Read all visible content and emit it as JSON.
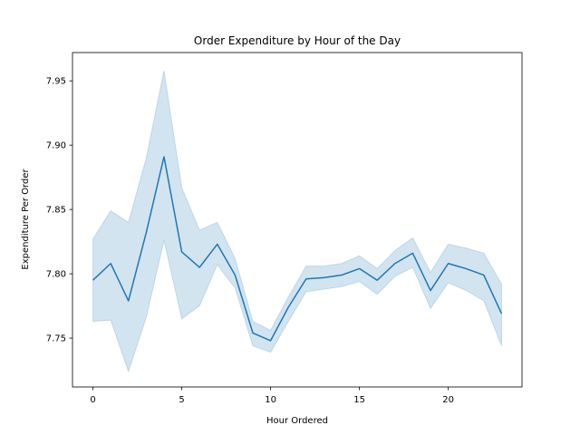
{
  "chart_data": {
    "type": "line",
    "title": "Order Expenditure by Hour of the Day",
    "xlabel": "Hour Ordered",
    "ylabel": "Expenditure Per Order",
    "xlim": [
      -1.15,
      24.15
    ],
    "ylim": [
      7.712,
      7.972
    ],
    "xticks": [
      0,
      5,
      10,
      15,
      20
    ],
    "yticks": [
      7.75,
      7.8,
      7.85,
      7.9,
      7.95
    ],
    "ytick_labels": [
      "7.75",
      "7.80",
      "7.85",
      "7.90",
      "7.95"
    ],
    "grid": false,
    "series": [
      {
        "color": "#1f77b4",
        "band_color": "#1f77b4",
        "x": [
          0,
          1,
          2,
          3,
          4,
          5,
          6,
          7,
          8,
          9,
          10,
          11,
          12,
          13,
          14,
          15,
          16,
          17,
          18,
          19,
          20,
          21,
          22,
          23
        ],
        "values": [
          7.795,
          7.808,
          7.779,
          7.832,
          7.891,
          7.817,
          7.805,
          7.823,
          7.799,
          7.754,
          7.748,
          7.774,
          7.796,
          7.797,
          7.799,
          7.804,
          7.795,
          7.808,
          7.816,
          7.787,
          7.808,
          7.804,
          7.799,
          7.769
        ],
        "ci_lower": [
          7.763,
          7.764,
          7.724,
          7.766,
          7.826,
          7.765,
          7.775,
          7.807,
          7.789,
          7.744,
          7.739,
          7.763,
          7.786,
          7.788,
          7.79,
          7.794,
          7.784,
          7.798,
          7.805,
          7.773,
          7.793,
          7.787,
          7.779,
          7.744
        ],
        "ci_upper": [
          7.827,
          7.849,
          7.84,
          7.89,
          7.958,
          7.867,
          7.834,
          7.84,
          7.812,
          7.763,
          7.756,
          7.782,
          7.806,
          7.806,
          7.808,
          7.814,
          7.804,
          7.818,
          7.828,
          7.801,
          7.823,
          7.82,
          7.816,
          7.792
        ]
      }
    ]
  }
}
